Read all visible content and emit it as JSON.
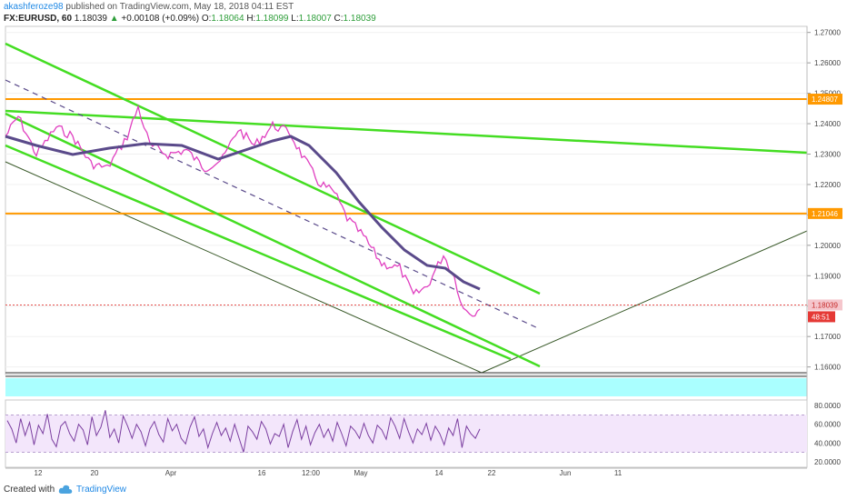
{
  "header": {
    "author": "akashferoze98",
    "published": "published on TradingView.com, May 18, 2018 04:11 EST",
    "symbol": "FX:EURUSD, 60",
    "last": "1.18039",
    "change": "+0.00108 (+0.09%)",
    "o_label": "O:",
    "o": "1.18064",
    "h_label": "H:",
    "h": "1.18099",
    "l_label": "L:",
    "l": "1.18007",
    "c_label": "C:",
    "c": "1.18039"
  },
  "footer": {
    "created_with": "Created with",
    "brand": "TradingView"
  },
  "colors": {
    "price": "#e040c0",
    "ma": "#5a4a8a",
    "channel": "#44dd22",
    "level": "#ff9900",
    "zone": "#e6f4e0",
    "cyan_band": "#aaffff",
    "rsi": "#7b3fa0",
    "rsi_band": "#f3e6fb"
  },
  "chart_data": {
    "type": "line",
    "price_axis": {
      "ticks": [
        "1.27000",
        "1.26000",
        "1.25000",
        "1.24000",
        "1.23000",
        "1.22000",
        "1.21000",
        "1.20000",
        "1.19000",
        "1.18000",
        "1.17000",
        "1.16000"
      ],
      "range": [
        1.1575,
        1.272
      ]
    },
    "time_axis": {
      "ticks": [
        "12",
        "20",
        "Apr",
        "16",
        "12:00",
        "May",
        "14",
        "22",
        "Jun",
        "11"
      ]
    },
    "horizontal_levels": [
      {
        "value": 1.24807,
        "label": "1.24807"
      },
      {
        "value": 1.21046,
        "label": "1.21046"
      }
    ],
    "current_price_label": "1.18039",
    "countdown_label": "48:51",
    "price_series": [
      [
        "12",
        1.2395
      ],
      [
        "20",
        1.2345
      ],
      [
        "Apr",
        1.2338
      ],
      [
        "16",
        1.2385
      ],
      [
        "12:00",
        1.2375
      ],
      [
        "May",
        1.201
      ],
      [
        "14",
        1.1935
      ],
      [
        "14",
        1.1835
      ],
      [
        "",
        1.1804
      ]
    ],
    "moving_average": [
      [
        "12",
        1.234
      ],
      [
        "20",
        1.2325
      ],
      [
        "Apr",
        1.2345
      ],
      [
        "16",
        1.2335
      ],
      [
        "12:00",
        1.2325
      ],
      [
        "May",
        1.209
      ],
      [
        "14",
        1.195
      ],
      [
        "",
        1.188
      ]
    ],
    "rsi": {
      "ticks": [
        "80.0000",
        "60.0000",
        "40.0000",
        "20.0000"
      ],
      "band": [
        70,
        30
      ],
      "range": [
        14,
        86
      ],
      "values": [
        64,
        55,
        40,
        66,
        48,
        62,
        38,
        59,
        50,
        71,
        44,
        36,
        58,
        63,
        50,
        42,
        60,
        54,
        38,
        68,
        48,
        57,
        75,
        46,
        55,
        40,
        69,
        58,
        45,
        60,
        52,
        37,
        55,
        63,
        49,
        41,
        66,
        53,
        60,
        45,
        39,
        57,
        68,
        47,
        55,
        35,
        50,
        62,
        48,
        56,
        42,
        60,
        45,
        30,
        58,
        52,
        44,
        63,
        55,
        39,
        50,
        47,
        60,
        35,
        52,
        65,
        44,
        58,
        38,
        51,
        60,
        46,
        55,
        42,
        62,
        50,
        37,
        58,
        53,
        45,
        61,
        48,
        40,
        59,
        54,
        44,
        67,
        58,
        45,
        66,
        52,
        40,
        55,
        49,
        61,
        43,
        58,
        50,
        38,
        56,
        48,
        66,
        35,
        58,
        50,
        45,
        55
      ]
    }
  }
}
